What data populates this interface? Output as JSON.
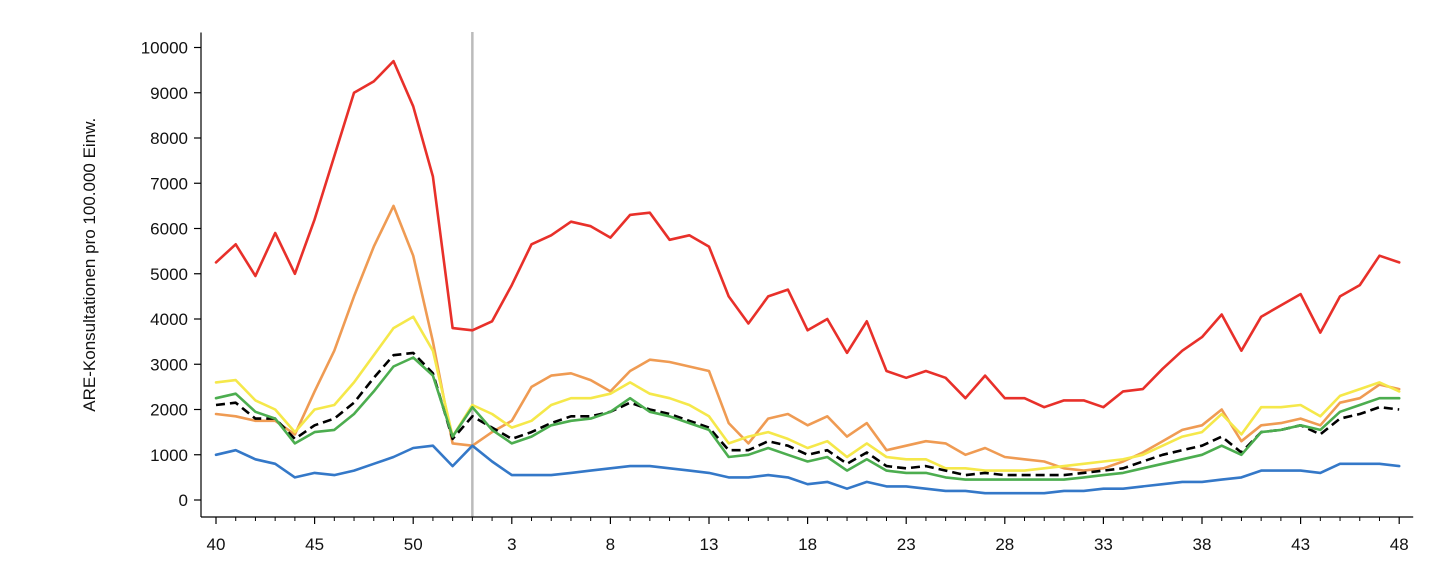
{
  "chart_data": {
    "type": "line",
    "title": "",
    "xlabel": "",
    "ylabel": "ARE-Konsultationen pro 100.000 Einw.",
    "ylim": [
      0,
      10000
    ],
    "yticks": [
      0,
      1000,
      2000,
      3000,
      4000,
      5000,
      6000,
      7000,
      8000,
      9000,
      10000
    ],
    "xticklabels": [
      "40",
      "45",
      "50",
      "3",
      "8",
      "13",
      "18",
      "23",
      "28",
      "33",
      "38",
      "43",
      "48"
    ],
    "x_note": "Calendar weeks 40 (one year) through 48 (following year); index 0 = week 40, index 12 = week 52, index 13 = week 1.",
    "reference_line_index": 13,
    "colors": {
      "red": "#e8302a",
      "orange": "#ef9b53",
      "yellow": "#f5e84a",
      "black_dashed": "#000000",
      "green": "#4cad4f",
      "blue": "#3478c8",
      "reference": "#bbbbbb",
      "axis": "#000000"
    },
    "series": [
      {
        "name": "red",
        "color": "#e8302a",
        "dashed": false,
        "values": [
          5250,
          5650,
          4950,
          5900,
          5000,
          6200,
          7600,
          9000,
          9250,
          9700,
          8700,
          7150,
          3800,
          3750,
          3950,
          4750,
          5650,
          5850,
          6150,
          6050,
          5800,
          6300,
          6350,
          5750,
          5850,
          5600,
          4500,
          3900,
          4500,
          4650,
          3750,
          4000,
          3250,
          3950,
          2850,
          2700,
          2850,
          2700,
          2250,
          2750,
          2250,
          2250,
          2050,
          2200,
          2200,
          2050,
          2400,
          2450,
          2900,
          3300,
          3600,
          4100,
          3300,
          4050,
          4300,
          4550,
          3700,
          4500,
          4750,
          5400,
          5250
        ]
      },
      {
        "name": "orange",
        "color": "#ef9b53",
        "dashed": false,
        "values": [
          1900,
          1850,
          1750,
          1750,
          1450,
          2400,
          3300,
          4500,
          5600,
          6500,
          5400,
          3500,
          1250,
          1200,
          1500,
          1750,
          2500,
          2750,
          2800,
          2650,
          2400,
          2850,
          3100,
          3050,
          2950,
          2850,
          1700,
          1250,
          1800,
          1900,
          1650,
          1850,
          1400,
          1700,
          1100,
          1200,
          1300,
          1250,
          1000,
          1150,
          950,
          900,
          850,
          700,
          650,
          700,
          850,
          1050,
          1300,
          1550,
          1650,
          2000,
          1300,
          1650,
          1700,
          1800,
          1650,
          2150,
          2250,
          2550,
          2450
        ]
      },
      {
        "name": "yellow",
        "color": "#f5e84a",
        "dashed": false,
        "values": [
          2600,
          2650,
          2200,
          2000,
          1500,
          2000,
          2100,
          2600,
          3200,
          3800,
          4050,
          3300,
          1400,
          2100,
          1900,
          1600,
          1750,
          2100,
          2250,
          2250,
          2350,
          2600,
          2350,
          2250,
          2100,
          1850,
          1250,
          1400,
          1500,
          1350,
          1150,
          1300,
          950,
          1250,
          950,
          900,
          900,
          700,
          700,
          650,
          650,
          650,
          700,
          750,
          800,
          850,
          900,
          1000,
          1200,
          1400,
          1500,
          1900,
          1450,
          2050,
          2050,
          2100,
          1850,
          2300,
          2450,
          2600,
          2400
        ]
      },
      {
        "name": "black-dashed",
        "color": "#000000",
        "dashed": true,
        "values": [
          2100,
          2150,
          1800,
          1800,
          1350,
          1650,
          1800,
          2150,
          2700,
          3200,
          3250,
          2800,
          1350,
          1850,
          1600,
          1350,
          1500,
          1700,
          1850,
          1850,
          1950,
          2150,
          2000,
          1900,
          1750,
          1600,
          1100,
          1100,
          1300,
          1200,
          1000,
          1100,
          800,
          1050,
          750,
          700,
          750,
          650,
          550,
          600,
          550,
          550,
          550,
          550,
          600,
          650,
          700,
          850,
          1000,
          1100,
          1200,
          1400,
          1050,
          1500,
          1550,
          1650,
          1450,
          1800,
          1900,
          2050,
          2000
        ]
      },
      {
        "name": "green",
        "color": "#4cad4f",
        "dashed": false,
        "values": [
          2250,
          2350,
          1950,
          1800,
          1250,
          1500,
          1550,
          1900,
          2400,
          2950,
          3150,
          2750,
          1400,
          2050,
          1550,
          1250,
          1400,
          1650,
          1750,
          1800,
          1950,
          2250,
          1950,
          1850,
          1700,
          1550,
          950,
          1000,
          1150,
          1000,
          850,
          950,
          650,
          900,
          650,
          600,
          600,
          500,
          450,
          450,
          450,
          450,
          450,
          450,
          500,
          550,
          600,
          700,
          800,
          900,
          1000,
          1200,
          1000,
          1500,
          1550,
          1650,
          1550,
          1950,
          2100,
          2250,
          2250
        ]
      },
      {
        "name": "blue",
        "color": "#3478c8",
        "dashed": false,
        "values": [
          1000,
          1100,
          900,
          800,
          500,
          600,
          550,
          650,
          800,
          950,
          1150,
          1200,
          750,
          1200,
          850,
          550,
          550,
          550,
          600,
          650,
          700,
          750,
          750,
          700,
          650,
          600,
          500,
          500,
          550,
          500,
          350,
          400,
          250,
          400,
          300,
          300,
          250,
          200,
          200,
          150,
          150,
          150,
          150,
          200,
          200,
          250,
          250,
          300,
          350,
          400,
          400,
          450,
          500,
          650,
          650,
          650,
          600,
          800,
          800,
          800,
          750
        ]
      }
    ]
  }
}
